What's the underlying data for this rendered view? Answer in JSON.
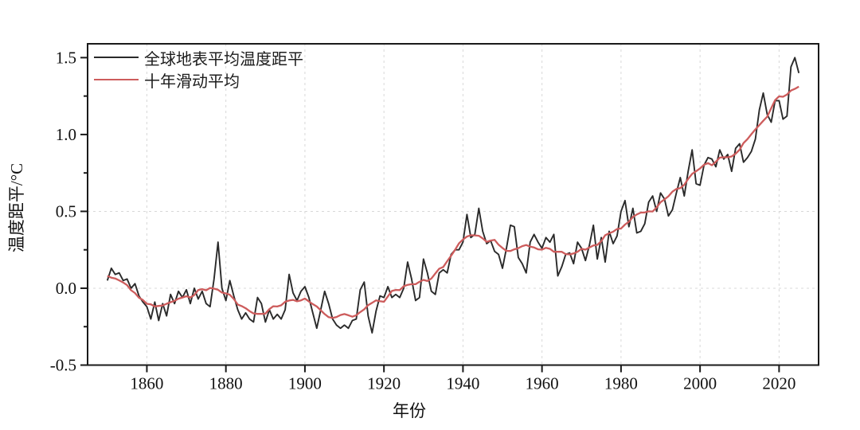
{
  "figure": {
    "title": "",
    "xlabel": "年份",
    "ylabel": "温度距平/°C",
    "legend": [
      {
        "label": "全球地表平均温度距平",
        "color": "#2a2a2a"
      },
      {
        "label": "十年滑动平均",
        "color": "#cd5c5c"
      }
    ],
    "colors": {
      "frame": "#1a1a1a",
      "grid": "#d8d8d8",
      "annual_line": "#2a2a2a",
      "smoothed_line": "#cd5c5c",
      "background": "#ffffff"
    }
  },
  "chart_data": {
    "type": "line",
    "title": "",
    "xlabel": "年份",
    "ylabel": "温度距平/°C",
    "xlim": [
      1845,
      2030
    ],
    "ylim": [
      -0.5,
      1.59
    ],
    "x_ticks": [
      1860,
      1880,
      1900,
      1920,
      1940,
      1960,
      1980,
      2000,
      2020
    ],
    "y_ticks": [
      -0.5,
      0.0,
      0.5,
      1.0,
      1.5
    ],
    "y_minor_ticks": [
      -0.25,
      0.25,
      0.75,
      1.25
    ],
    "grid": {
      "vertical_at_x_ticks": true,
      "horizontal_values": [
        0.0,
        0.5
      ],
      "style": "dashed"
    },
    "legend_position": "top-left",
    "start_year": 1850,
    "x_step": 1,
    "series": [
      {
        "name": "全球地表平均温度距平",
        "color": "#2a2a2a",
        "kind": "annual",
        "values": [
          0.05,
          0.13,
          0.09,
          0.1,
          0.05,
          0.06,
          0.0,
          0.03,
          -0.05,
          -0.09,
          -0.12,
          -0.2,
          -0.09,
          -0.21,
          -0.1,
          -0.18,
          -0.04,
          -0.1,
          -0.02,
          -0.06,
          -0.01,
          -0.1,
          0.0,
          -0.07,
          -0.02,
          -0.1,
          -0.12,
          0.06,
          0.3,
          0.0,
          -0.08,
          0.05,
          -0.05,
          -0.14,
          -0.2,
          -0.16,
          -0.2,
          -0.22,
          -0.06,
          -0.1,
          -0.22,
          -0.14,
          -0.2,
          -0.17,
          -0.2,
          -0.14,
          0.09,
          -0.03,
          -0.08,
          -0.02,
          0.01,
          -0.06,
          -0.16,
          -0.26,
          -0.14,
          -0.02,
          -0.1,
          -0.2,
          -0.24,
          -0.26,
          -0.24,
          -0.26,
          -0.21,
          -0.2,
          -0.01,
          0.04,
          -0.18,
          -0.29,
          -0.15,
          -0.05,
          -0.06,
          0.01,
          -0.06,
          -0.04,
          -0.06,
          0.0,
          0.17,
          0.06,
          -0.08,
          -0.06,
          0.19,
          0.1,
          -0.02,
          -0.04,
          0.1,
          0.12,
          0.1,
          0.22,
          0.25,
          0.25,
          0.3,
          0.48,
          0.33,
          0.35,
          0.52,
          0.37,
          0.29,
          0.31,
          0.24,
          0.22,
          0.13,
          0.26,
          0.41,
          0.4,
          0.2,
          0.16,
          0.1,
          0.3,
          0.35,
          0.3,
          0.26,
          0.33,
          0.3,
          0.35,
          0.08,
          0.14,
          0.22,
          0.23,
          0.16,
          0.3,
          0.26,
          0.18,
          0.28,
          0.41,
          0.19,
          0.33,
          0.17,
          0.37,
          0.29,
          0.34,
          0.5,
          0.57,
          0.4,
          0.52,
          0.36,
          0.37,
          0.42,
          0.56,
          0.6,
          0.5,
          0.62,
          0.58,
          0.47,
          0.51,
          0.62,
          0.72,
          0.6,
          0.76,
          0.9,
          0.68,
          0.67,
          0.8,
          0.85,
          0.84,
          0.79,
          0.9,
          0.84,
          0.87,
          0.76,
          0.91,
          0.94,
          0.82,
          0.85,
          0.89,
          0.97,
          1.16,
          1.27,
          1.13,
          1.08,
          1.22,
          1.22,
          1.1,
          1.12,
          1.44,
          1.5,
          1.4
        ]
      },
      {
        "name": "十年滑动平均",
        "color": "#cd5c5c",
        "kind": "10-year centered moving average",
        "derived_from": "全球地表平均温度距平",
        "window": 10
      }
    ]
  }
}
